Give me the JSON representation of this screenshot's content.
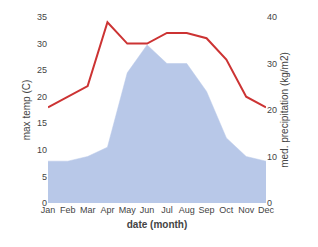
{
  "chart_data": {
    "type": "line",
    "categories": [
      "Jan",
      "Feb",
      "Mar",
      "Apr",
      "May",
      "Jun",
      "Jul",
      "Aug",
      "Sep",
      "Oct",
      "Nov",
      "Dec"
    ],
    "series": [
      {
        "type": "area",
        "axis": "y2",
        "color": "#b8c8e8",
        "values": [
          9,
          9,
          10,
          12,
          28,
          34,
          30,
          30,
          24,
          14,
          10,
          9
        ]
      },
      {
        "type": "line",
        "color": "#cc3333",
        "values": [
          18,
          20,
          22,
          34,
          30,
          30,
          32,
          32,
          31,
          27,
          20,
          18
        ]
      }
    ],
    "xlabel": "date (month)",
    "ylabel": "max temp (C)",
    "y2label": "med. precipitation (kg/m2)",
    "ylim": [
      0,
      35
    ],
    "yticks": [
      0,
      5,
      10,
      15,
      20,
      25,
      30,
      35
    ],
    "y2lim": [
      0,
      40
    ],
    "y2ticks": [
      0,
      10,
      20,
      30,
      40
    ],
    "grid": false
  }
}
